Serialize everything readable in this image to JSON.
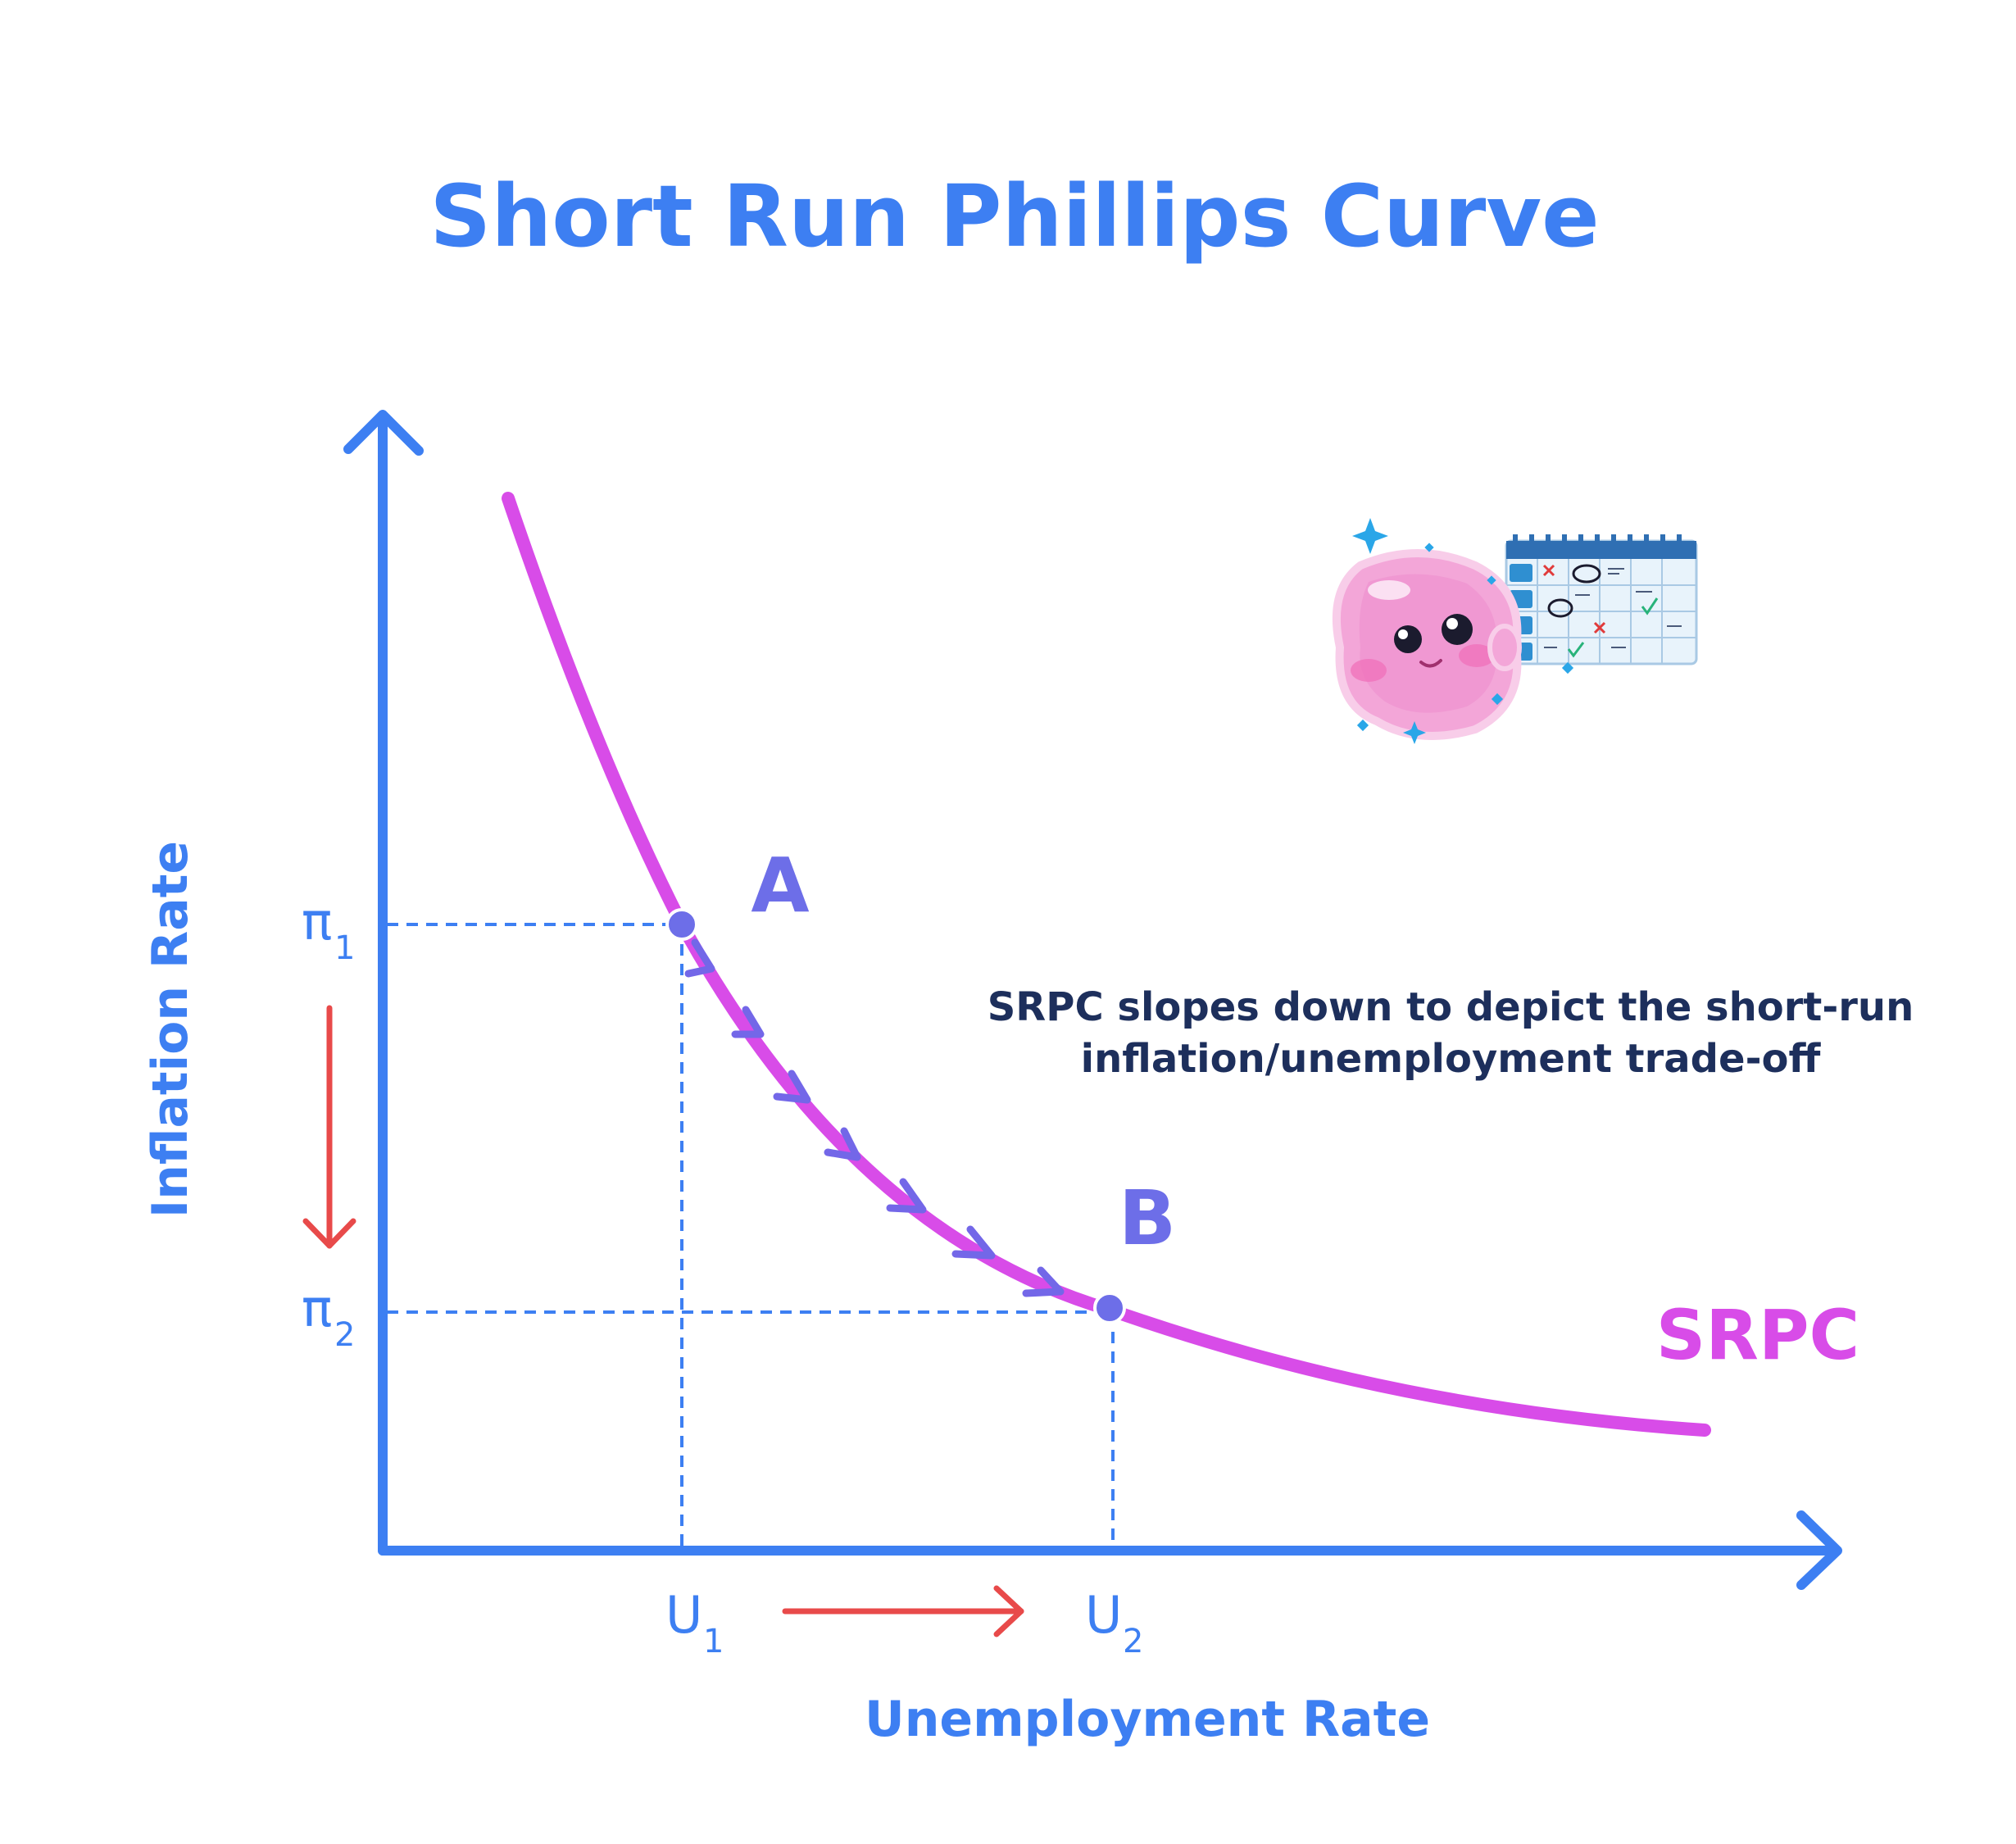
{
  "title": "Short Run Phillips Curve",
  "x_axis_label": "Unemployment Rate",
  "y_axis_label": "Inflation Rate",
  "ticks": {
    "u1": {
      "base": "U",
      "sub": "1"
    },
    "u2": {
      "base": "U",
      "sub": "2"
    },
    "pi1": {
      "base": "π",
      "sub": "1"
    },
    "pi2": {
      "base": "π",
      "sub": "2"
    }
  },
  "points": {
    "a": "A",
    "b": "B"
  },
  "curve_label": "SRPC",
  "note": {
    "line1": "SRPC slopes down to depict the short-run",
    "line2": "inflation/unemployment trade-off"
  },
  "colors": {
    "axis": "#3d7ff2",
    "curve": "#d84ce8",
    "point": "#6d6ee8",
    "arrow": "#e84a4a",
    "note": "#1d2f5c"
  },
  "icons": [
    "pink-blob-mascot-icon",
    "calendar-icon"
  ]
}
